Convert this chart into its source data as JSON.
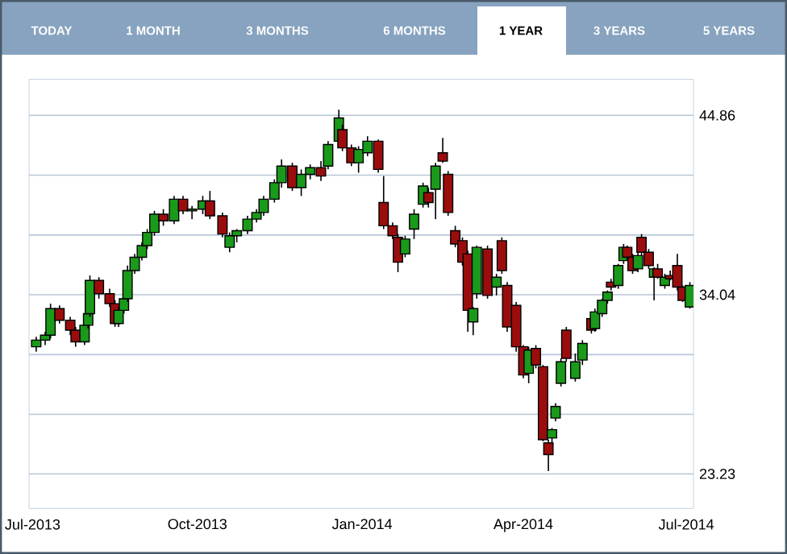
{
  "chart_data": {
    "type": "candlestick",
    "annotations": [
      "TODAY",
      "1 MONTH",
      "3 MONTHS",
      "6 MONTHS",
      "1 YEAR",
      "3 YEARS",
      "5 YEARS"
    ],
    "x": [
      "2013-07-03",
      "2013-07-08",
      "2013-07-11",
      "2013-07-16",
      "2013-07-22",
      "2013-07-25",
      "2013-07-30",
      "2013-08-01",
      "2013-08-02",
      "2013-08-07",
      "2013-08-13",
      "2013-08-16",
      "2013-08-18",
      "2013-08-21",
      "2013-08-23",
      "2013-08-27",
      "2013-08-31",
      "2013-09-03",
      "2013-09-07",
      "2013-09-12",
      "2013-09-18",
      "2013-09-23",
      "2013-09-28",
      "2013-10-04",
      "2013-10-08",
      "2013-10-15",
      "2013-10-19",
      "2013-10-23",
      "2013-10-29",
      "2013-11-03",
      "2013-11-07",
      "2013-11-13",
      "2013-11-17",
      "2013-11-23",
      "2013-11-28",
      "2013-12-03",
      "2013-12-09",
      "2013-12-13",
      "2013-12-19",
      "2013-12-21",
      "2013-12-26",
      "2013-12-30",
      "2014-01-04",
      "2014-01-10",
      "2014-01-13",
      "2014-01-18",
      "2014-01-21",
      "2014-01-25",
      "2014-01-30",
      "2014-02-04",
      "2014-02-07",
      "2014-02-11",
      "2014-02-15",
      "2014-02-18",
      "2014-02-22",
      "2014-02-26",
      "2014-03-01",
      "2014-03-04",
      "2014-03-06",
      "2014-03-12",
      "2014-03-17",
      "2014-03-20",
      "2014-03-23",
      "2014-03-28",
      "2014-04-01",
      "2014-04-04",
      "2014-04-08",
      "2014-04-12",
      "2014-04-15",
      "2014-04-17",
      "2014-04-19",
      "2014-04-22",
      "2014-04-25",
      "2014-04-30",
      "2014-05-04",
      "2014-05-09",
      "2014-05-11",
      "2014-05-15",
      "2014-05-18",
      "2014-05-20",
      "2014-05-24",
      "2014-05-27",
      "2014-05-29",
      "2014-06-01",
      "2014-06-04",
      "2014-06-06",
      "2014-06-10",
      "2014-06-13",
      "2014-06-15",
      "2014-06-19",
      "2014-06-22",
      "2014-06-26",
      "2014-06-29",
      "2014-07-03"
    ],
    "ohlc": [
      [
        30.9,
        31.5,
        30.6,
        31.3
      ],
      [
        31.3,
        31.8,
        31.0,
        31.6
      ],
      [
        31.6,
        33.5,
        31.4,
        33.2
      ],
      [
        33.2,
        33.4,
        32.3,
        32.5
      ],
      [
        32.5,
        32.7,
        31.6,
        31.9
      ],
      [
        31.9,
        32.1,
        30.9,
        31.2
      ],
      [
        31.2,
        32.4,
        31.0,
        32.2
      ],
      [
        32.2,
        33.0,
        32.0,
        32.9
      ],
      [
        32.9,
        35.2,
        32.7,
        34.9
      ],
      [
        34.9,
        35.1,
        33.8,
        34.1
      ],
      [
        34.1,
        34.4,
        33.3,
        33.5
      ],
      [
        33.5,
        33.7,
        32.1,
        32.3
      ],
      [
        32.3,
        33.3,
        32.1,
        33.1
      ],
      [
        33.1,
        34.0,
        32.9,
        33.8
      ],
      [
        33.8,
        35.8,
        33.6,
        35.5
      ],
      [
        35.5,
        36.5,
        35.3,
        36.3
      ],
      [
        36.3,
        37.2,
        36.1,
        37.0
      ],
      [
        37.0,
        38.0,
        36.8,
        37.8
      ],
      [
        37.8,
        39.1,
        37.6,
        38.9
      ],
      [
        38.9,
        39.2,
        38.2,
        38.5
      ],
      [
        38.5,
        40.0,
        38.3,
        39.8
      ],
      [
        39.8,
        40.0,
        38.9,
        39.1
      ],
      [
        39.1,
        39.4,
        38.6,
        39.2
      ],
      [
        39.2,
        40.0,
        38.9,
        39.7
      ],
      [
        39.7,
        40.3,
        38.6,
        38.8
      ],
      [
        38.8,
        39.0,
        37.5,
        37.7
      ],
      [
        36.9,
        37.8,
        36.6,
        37.6
      ],
      [
        37.6,
        38.0,
        37.2,
        37.9
      ],
      [
        37.9,
        38.8,
        37.7,
        38.6
      ],
      [
        38.6,
        39.2,
        38.4,
        39.0
      ],
      [
        39.0,
        40.0,
        38.8,
        39.8
      ],
      [
        39.8,
        41.0,
        39.6,
        40.8
      ],
      [
        40.8,
        42.2,
        40.5,
        41.8
      ],
      [
        41.8,
        42.0,
        40.3,
        40.5
      ],
      [
        40.5,
        41.6,
        40.0,
        41.3
      ],
      [
        41.3,
        41.9,
        41.0,
        41.7
      ],
      [
        41.7,
        42.1,
        40.9,
        41.2
      ],
      [
        41.8,
        43.3,
        41.6,
        43.1
      ],
      [
        43.3,
        45.2,
        43.1,
        44.7
      ],
      [
        44.0,
        44.3,
        42.7,
        42.9
      ],
      [
        42.9,
        43.1,
        41.8,
        42.0
      ],
      [
        42.0,
        43.0,
        41.4,
        42.8
      ],
      [
        42.6,
        43.6,
        42.4,
        43.3
      ],
      [
        43.3,
        43.4,
        41.4,
        41.6
      ],
      [
        39.6,
        41.2,
        38.0,
        38.2
      ],
      [
        38.2,
        38.4,
        37.4,
        37.6
      ],
      [
        37.5,
        37.7,
        35.4,
        36.0
      ],
      [
        36.5,
        37.6,
        36.3,
        37.4
      ],
      [
        38.0,
        39.2,
        37.4,
        38.9
      ],
      [
        39.5,
        40.8,
        39.3,
        40.6
      ],
      [
        40.2,
        40.5,
        39.3,
        39.6
      ],
      [
        40.4,
        42.0,
        38.6,
        41.8
      ],
      [
        42.6,
        43.5,
        42.0,
        42.1
      ],
      [
        41.3,
        41.5,
        38.8,
        39.0
      ],
      [
        37.9,
        38.2,
        36.9,
        37.1
      ],
      [
        37.3,
        37.5,
        35.8,
        36.0
      ],
      [
        36.5,
        36.7,
        31.8,
        33.1
      ],
      [
        32.4,
        33.3,
        31.6,
        33.2
      ],
      [
        34.1,
        37.0,
        33.8,
        36.9
      ],
      [
        36.8,
        37.0,
        33.8,
        34.0
      ],
      [
        34.5,
        35.3,
        34.0,
        35.1
      ],
      [
        37.3,
        37.5,
        35.3,
        35.5
      ],
      [
        34.6,
        34.8,
        31.8,
        32.1
      ],
      [
        33.4,
        33.6,
        30.6,
        30.9
      ],
      [
        30.9,
        31.0,
        29.0,
        29.2
      ],
      [
        29.3,
        30.9,
        28.7,
        30.7
      ],
      [
        30.8,
        31.0,
        29.6,
        29.8
      ],
      [
        29.7,
        29.8,
        25.2,
        25.3
      ],
      [
        25.1,
        25.3,
        23.4,
        24.4
      ],
      [
        25.4,
        26.0,
        25.1,
        25.9
      ],
      [
        26.6,
        27.5,
        26.4,
        27.3
      ],
      [
        28.7,
        30.2,
        28.5,
        30.0
      ],
      [
        31.9,
        32.1,
        30.0,
        30.2
      ],
      [
        29.0,
        30.5,
        28.8,
        30.0
      ],
      [
        30.1,
        31.3,
        29.8,
        31.1
      ],
      [
        32.6,
        32.9,
        31.7,
        31.9
      ],
      [
        32.0,
        33.2,
        31.8,
        33.0
      ],
      [
        32.9,
        33.8,
        32.7,
        33.7
      ],
      [
        33.7,
        34.3,
        33.5,
        34.2
      ],
      [
        34.8,
        35.0,
        34.3,
        34.5
      ],
      [
        34.6,
        35.9,
        34.4,
        35.8
      ],
      [
        36.1,
        37.1,
        35.9,
        36.9
      ],
      [
        36.9,
        37.0,
        36.1,
        36.3
      ],
      [
        36.3,
        36.5,
        35.3,
        35.5
      ],
      [
        35.6,
        36.6,
        35.4,
        36.4
      ],
      [
        37.5,
        37.7,
        36.4,
        36.6
      ],
      [
        36.6,
        36.8,
        35.6,
        35.8
      ],
      [
        35.1,
        35.7,
        33.7,
        35.6
      ],
      [
        35.6,
        35.9,
        35.0,
        35.1
      ],
      [
        34.6,
        35.3,
        34.4,
        35.1
      ],
      [
        35.2,
        35.5,
        34.9,
        35.0
      ],
      [
        35.8,
        36.5,
        34.3,
        34.5
      ],
      [
        34.5,
        34.6,
        33.6,
        33.7
      ],
      [
        33.3,
        34.8,
        33.2,
        34.6
      ]
    ],
    "colors": [
      "#1a9a1a",
      "#1a9a1a",
      "#1a9a1a",
      "#9b0d0d",
      "#9b0d0d",
      "#9b0d0d",
      "#1a9a1a",
      "#1a9a1a",
      "#1a9a1a",
      "#9b0d0d",
      "#9b0d0d",
      "#9b0d0d",
      "#1a9a1a",
      "#1a9a1a",
      "#1a9a1a",
      "#1a9a1a",
      "#1a9a1a",
      "#1a9a1a",
      "#1a9a1a",
      "#9b0d0d",
      "#1a9a1a",
      "#9b0d0d",
      "#1a9a1a",
      "#1a9a1a",
      "#9b0d0d",
      "#9b0d0d",
      "#1a9a1a",
      "#1a9a1a",
      "#1a9a1a",
      "#1a9a1a",
      "#1a9a1a",
      "#1a9a1a",
      "#1a9a1a",
      "#9b0d0d",
      "#1a9a1a",
      "#1a9a1a",
      "#9b0d0d",
      "#1a9a1a",
      "#1a9a1a",
      "#9b0d0d",
      "#9b0d0d",
      "#1a9a1a",
      "#1a9a1a",
      "#9b0d0d",
      "#9b0d0d",
      "#9b0d0d",
      "#9b0d0d",
      "#1a9a1a",
      "#1a9a1a",
      "#1a9a1a",
      "#9b0d0d",
      "#1a9a1a",
      "#9b0d0d",
      "#9b0d0d",
      "#9b0d0d",
      "#9b0d0d",
      "#9b0d0d",
      "#1a9a1a",
      "#1a9a1a",
      "#9b0d0d",
      "#1a9a1a",
      "#9b0d0d",
      "#9b0d0d",
      "#9b0d0d",
      "#9b0d0d",
      "#1a9a1a",
      "#9b0d0d",
      "#9b0d0d",
      "#9b0d0d",
      "#1a9a1a",
      "#1a9a1a",
      "#1a9a1a",
      "#9b0d0d",
      "#1a9a1a",
      "#1a9a1a",
      "#9b0d0d",
      "#1a9a1a",
      "#1a9a1a",
      "#1a9a1a",
      "#9b0d0d",
      "#1a9a1a",
      "#1a9a1a",
      "#9b0d0d",
      "#9b0d0d",
      "#1a9a1a",
      "#9b0d0d",
      "#9b0d0d",
      "#1a9a1a",
      "#9b0d0d",
      "#1a9a1a",
      "#9b0d0d",
      "#9b0d0d",
      "#9b0d0d",
      "#1a9a1a"
    ],
    "xlim": [
      "2013-06-29",
      "2014-07-05"
    ],
    "xticks": [
      {
        "value": "2013-07-01",
        "label": "Jul-2013"
      },
      {
        "value": "2013-10-01",
        "label": "Oct-2013"
      },
      {
        "value": "2014-01-01",
        "label": "Jan-2014"
      },
      {
        "value": "2014-04-01",
        "label": "Apr-2014"
      },
      {
        "value": "2014-07-01",
        "label": "Jul-2014"
      }
    ],
    "ylim": [
      21.15,
      47.03
    ],
    "yticks": [
      23.23,
      {
        "value": 26.83,
        "label": null
      },
      {
        "value": 30.43,
        "label": null
      },
      34.04,
      {
        "value": 37.64,
        "label": null
      },
      {
        "value": 41.25,
        "label": null
      },
      44.86
    ],
    "grid": "y"
  }
}
